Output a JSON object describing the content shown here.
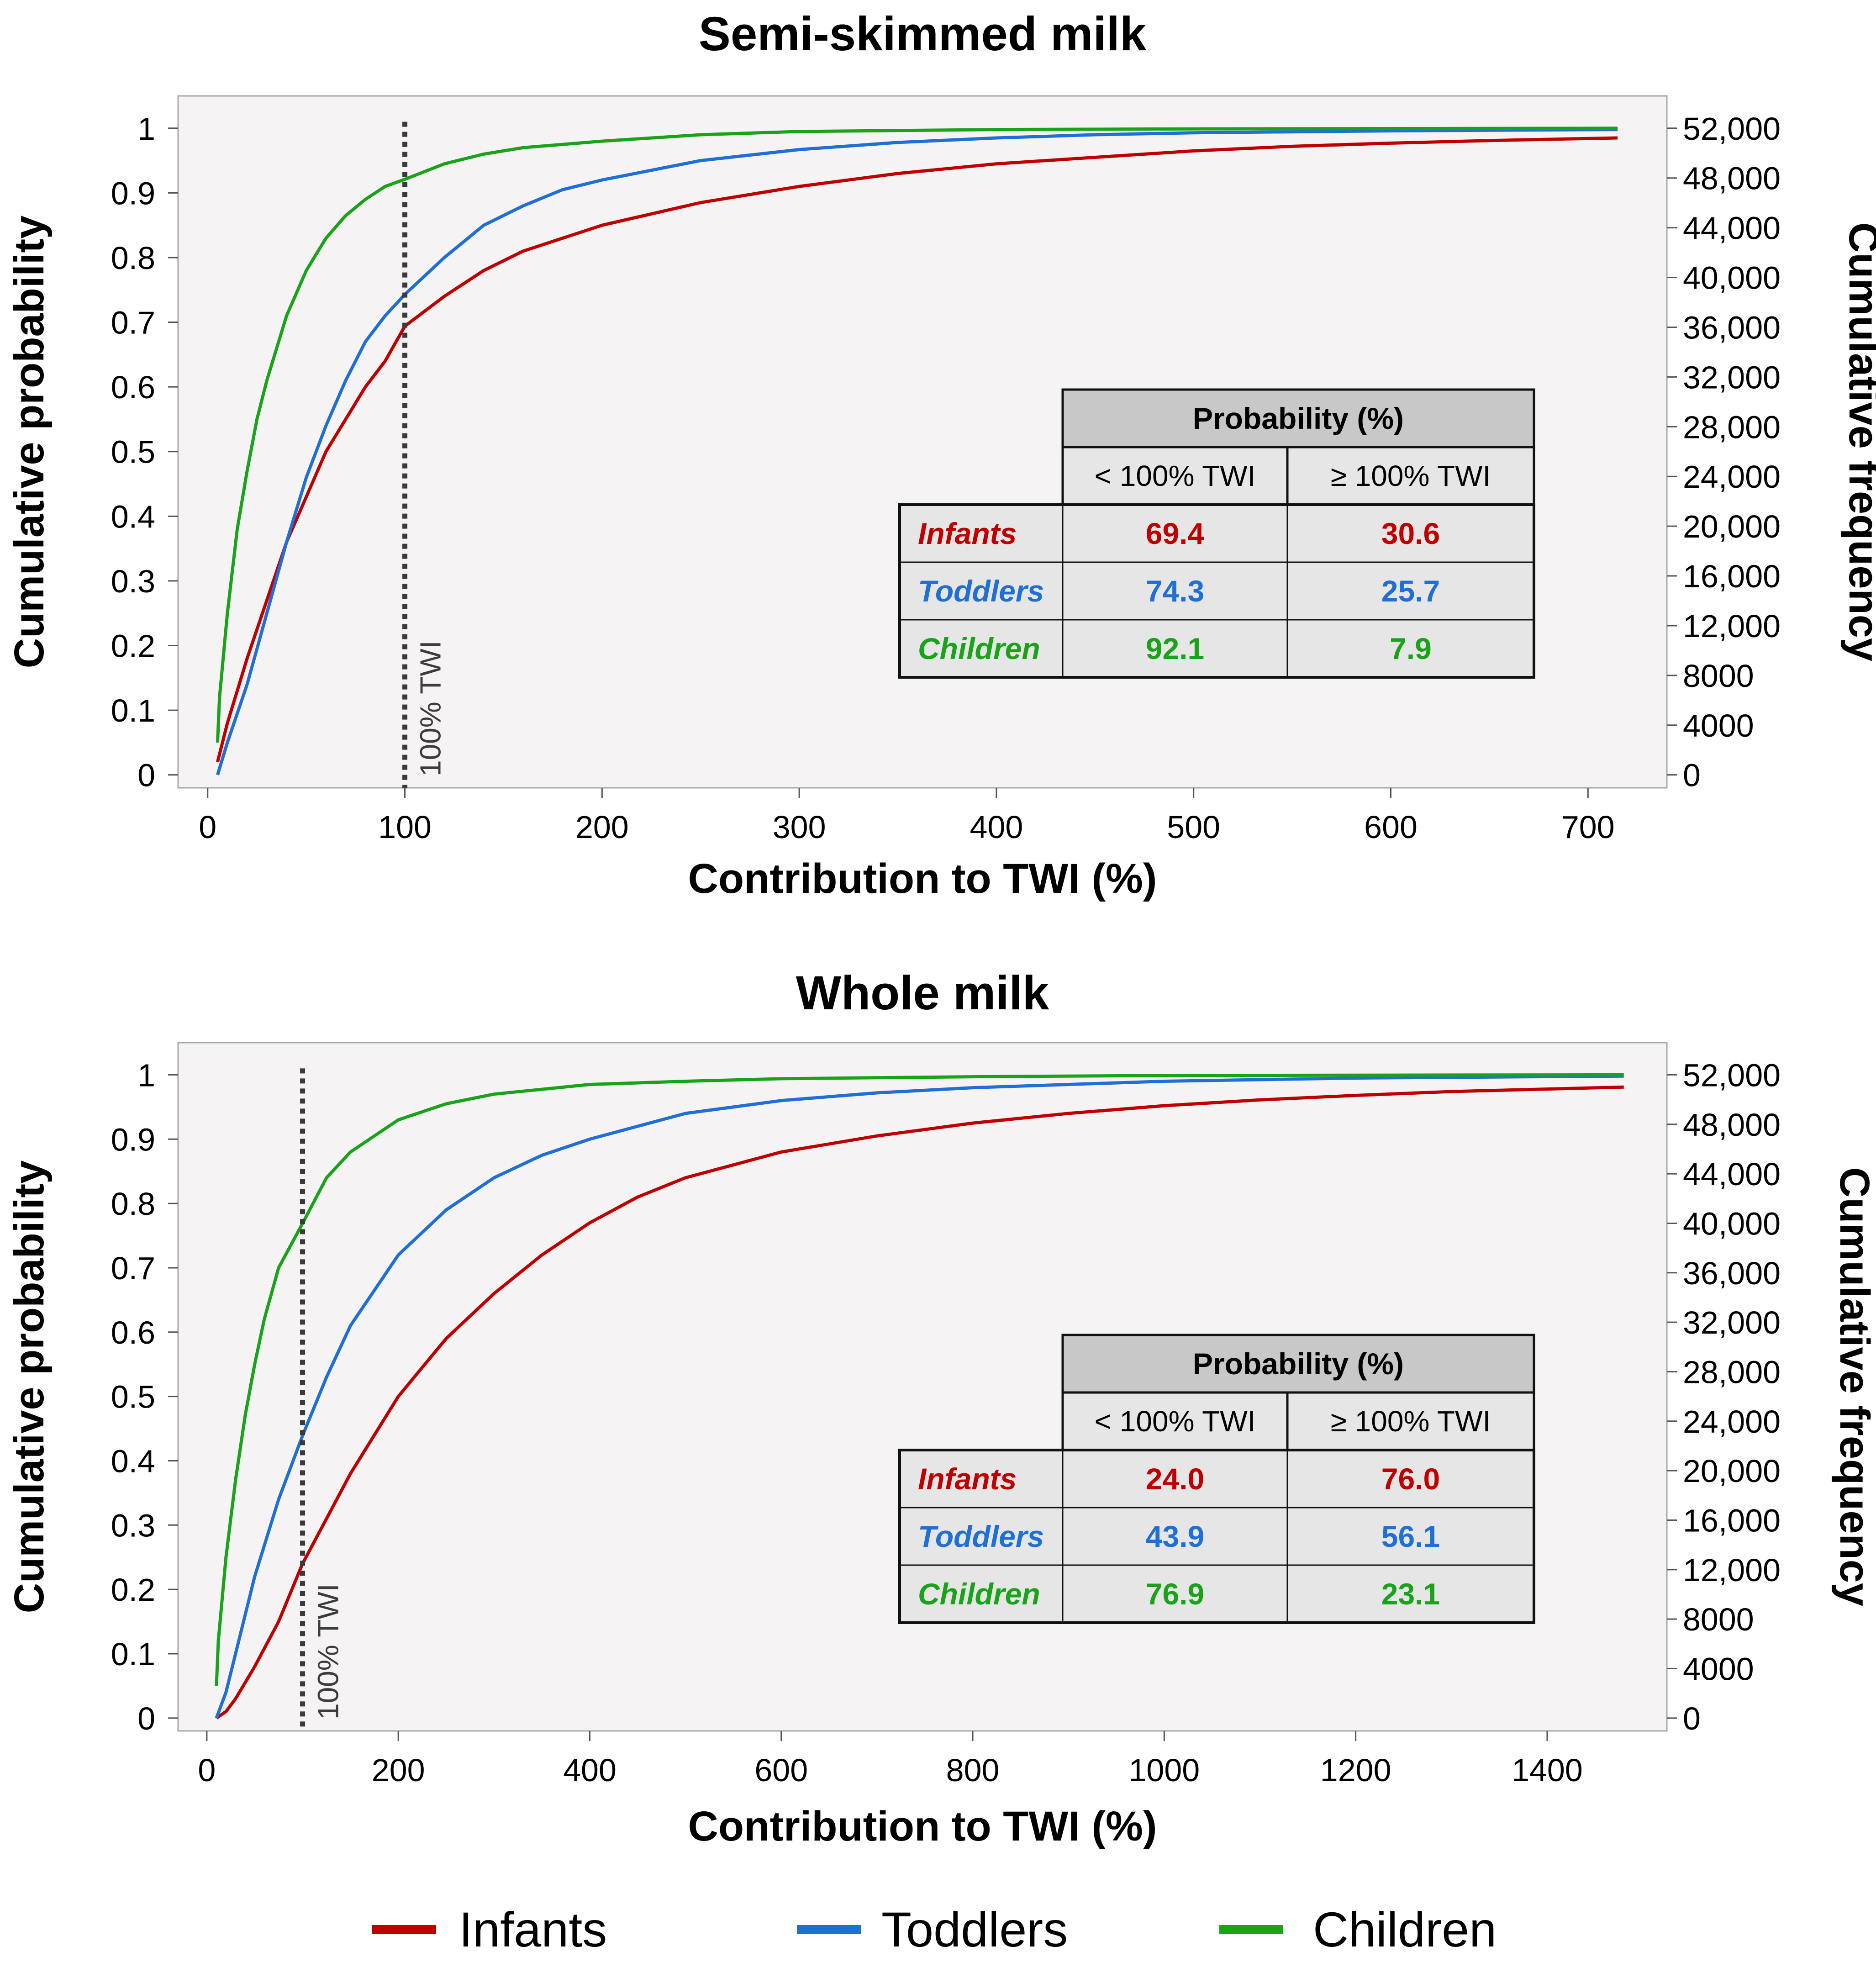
{
  "colors": {
    "infants": "#c00000",
    "toddlers": "#1f6fd6",
    "children": "#19a319",
    "plot_bg": "#f5f3f4",
    "table_header": "#c8c8c8",
    "table_body": "#e6e6e6",
    "twi_line": "#3a3a3a"
  },
  "legend": [
    {
      "key": "infants",
      "label": "Infants"
    },
    {
      "key": "toddlers",
      "label": "Toddlers"
    },
    {
      "key": "children",
      "label": "Children"
    }
  ],
  "chart_data": [
    {
      "type": "line",
      "title": "Semi-skimmed milk",
      "xlabel": "Contribution to TWI (%)",
      "ylabel": "Cumulative probability",
      "y2label": "Cumulative frequency",
      "xlim": [
        -15,
        740
      ],
      "ylim": [
        -0.02,
        1.05
      ],
      "y2lim": [
        -1040,
        54600
      ],
      "xticks": [
        0,
        100,
        200,
        300,
        400,
        500,
        600,
        700
      ],
      "xtick_labels": [
        "0",
        "100",
        "200",
        "300",
        "400",
        "500",
        "600",
        "700"
      ],
      "yticks": [
        0,
        0.1,
        0.2,
        0.3,
        0.4,
        0.5,
        0.6,
        0.7,
        0.8,
        0.9,
        1
      ],
      "ytick_labels": [
        "0",
        "0.1",
        "0.2",
        "0.3",
        "0.4",
        "0.5",
        "0.6",
        "0.7",
        "0.8",
        "0.9",
        "1"
      ],
      "y2ticks": [
        0,
        4000,
        8000,
        12000,
        16000,
        20000,
        24000,
        28000,
        32000,
        36000,
        40000,
        44000,
        48000,
        52000
      ],
      "y2tick_labels": [
        "0",
        "4000",
        "8000",
        "12,000",
        "16,000",
        "20,000",
        "24,000",
        "28,000",
        "32,000",
        "36,000",
        "40,000",
        "44,000",
        "48,000",
        "52,000"
      ],
      "twi_line": {
        "x": 100,
        "label": "100% TWI"
      },
      "series": [
        {
          "name": "Infants",
          "key": "infants",
          "x": [
            5,
            10,
            20,
            30,
            40,
            50,
            60,
            70,
            80,
            90,
            100,
            120,
            140,
            160,
            180,
            200,
            250,
            300,
            350,
            400,
            450,
            500,
            550,
            600,
            650,
            715
          ],
          "y": [
            0.02,
            0.08,
            0.18,
            0.27,
            0.36,
            0.43,
            0.5,
            0.55,
            0.6,
            0.64,
            0.694,
            0.74,
            0.78,
            0.81,
            0.83,
            0.85,
            0.885,
            0.91,
            0.93,
            0.945,
            0.955,
            0.965,
            0.972,
            0.977,
            0.981,
            0.985
          ]
        },
        {
          "name": "Toddlers",
          "key": "toddlers",
          "x": [
            5,
            10,
            20,
            30,
            40,
            50,
            60,
            70,
            80,
            90,
            100,
            120,
            140,
            160,
            180,
            200,
            250,
            300,
            350,
            400,
            450,
            500,
            600,
            715
          ],
          "y": [
            0,
            0.05,
            0.14,
            0.25,
            0.36,
            0.46,
            0.54,
            0.61,
            0.67,
            0.71,
            0.743,
            0.8,
            0.85,
            0.88,
            0.905,
            0.92,
            0.95,
            0.967,
            0.978,
            0.985,
            0.99,
            0.993,
            0.996,
            0.998
          ]
        },
        {
          "name": "Children",
          "key": "children",
          "x": [
            5,
            6,
            10,
            15,
            20,
            25,
            30,
            40,
            50,
            60,
            70,
            80,
            90,
            100,
            120,
            140,
            160,
            200,
            250,
            300,
            400,
            500,
            715
          ],
          "y": [
            0.05,
            0.12,
            0.25,
            0.38,
            0.47,
            0.55,
            0.61,
            0.71,
            0.78,
            0.83,
            0.865,
            0.89,
            0.91,
            0.921,
            0.945,
            0.96,
            0.97,
            0.98,
            0.99,
            0.995,
            0.998,
            0.999,
            1.0
          ]
        }
      ],
      "table": {
        "header": "Probability (%)",
        "col_labels": [
          "< 100% TWI",
          "≥ 100% TWI"
        ],
        "rows": [
          {
            "key": "infants",
            "name": "Infants",
            "below": "69.4",
            "above": "30.6"
          },
          {
            "key": "toddlers",
            "name": "Toddlers",
            "below": "74.3",
            "above": "25.7"
          },
          {
            "key": "children",
            "name": "Children",
            "below": "92.1",
            "above": "7.9"
          }
        ]
      }
    },
    {
      "type": "line",
      "title": "Whole milk",
      "xlabel": "Contribution to TWI (%)",
      "ylabel": "Cumulative probability",
      "y2label": "Cumulative frequency",
      "xlim": [
        -30,
        1525
      ],
      "ylim": [
        -0.02,
        1.05
      ],
      "y2lim": [
        -1040,
        54600
      ],
      "xticks": [
        0,
        200,
        400,
        600,
        800,
        1000,
        1200,
        1400
      ],
      "xtick_labels": [
        "0",
        "200",
        "400",
        "600",
        "800",
        "1000",
        "1200",
        "1400"
      ],
      "yticks": [
        0,
        0.1,
        0.2,
        0.3,
        0.4,
        0.5,
        0.6,
        0.7,
        0.8,
        0.9,
        1
      ],
      "ytick_labels": [
        "0",
        "0.1",
        "0.2",
        "0.3",
        "0.4",
        "0.5",
        "0.6",
        "0.7",
        "0.8",
        "0.9",
        "1"
      ],
      "y2ticks": [
        0,
        4000,
        8000,
        12000,
        16000,
        20000,
        24000,
        28000,
        32000,
        36000,
        40000,
        44000,
        48000,
        52000
      ],
      "y2tick_labels": [
        "0",
        "4000",
        "8000",
        "12,000",
        "16,000",
        "20,000",
        "24,000",
        "28,000",
        "32,000",
        "36,000",
        "40,000",
        "44,000",
        "48,000",
        "52,000"
      ],
      "twi_line": {
        "x": 100,
        "label": "100% TWI"
      },
      "series": [
        {
          "name": "Infants",
          "key": "infants",
          "x": [
            10,
            20,
            30,
            50,
            75,
            100,
            125,
            150,
            200,
            250,
            300,
            350,
            400,
            450,
            500,
            600,
            700,
            800,
            900,
            1000,
            1100,
            1200,
            1300,
            1480
          ],
          "y": [
            0,
            0.01,
            0.03,
            0.08,
            0.15,
            0.24,
            0.31,
            0.38,
            0.5,
            0.59,
            0.66,
            0.72,
            0.77,
            0.81,
            0.84,
            0.88,
            0.905,
            0.925,
            0.94,
            0.952,
            0.961,
            0.968,
            0.974,
            0.981
          ]
        },
        {
          "name": "Toddlers",
          "key": "toddlers",
          "x": [
            10,
            20,
            30,
            50,
            75,
            100,
            125,
            150,
            200,
            250,
            300,
            350,
            400,
            500,
            600,
            700,
            800,
            1000,
            1200,
            1480
          ],
          "y": [
            0,
            0.04,
            0.1,
            0.22,
            0.34,
            0.439,
            0.53,
            0.61,
            0.72,
            0.79,
            0.84,
            0.875,
            0.9,
            0.94,
            0.96,
            0.972,
            0.98,
            0.99,
            0.995,
            0.998
          ]
        },
        {
          "name": "Children",
          "key": "children",
          "x": [
            10,
            12,
            20,
            30,
            40,
            50,
            60,
            75,
            100,
            125,
            150,
            200,
            250,
            300,
            400,
            500,
            600,
            800,
            1000,
            1480
          ],
          "y": [
            0.05,
            0.12,
            0.25,
            0.37,
            0.47,
            0.55,
            0.62,
            0.7,
            0.769,
            0.84,
            0.88,
            0.93,
            0.955,
            0.97,
            0.985,
            0.99,
            0.994,
            0.997,
            0.999,
            1.0
          ]
        }
      ],
      "table": {
        "header": "Probability (%)",
        "col_labels": [
          "< 100% TWI",
          "≥ 100% TWI"
        ],
        "rows": [
          {
            "key": "infants",
            "name": "Infants",
            "below": "24.0",
            "above": "76.0"
          },
          {
            "key": "toddlers",
            "name": "Toddlers",
            "below": "43.9",
            "above": "56.1"
          },
          {
            "key": "children",
            "name": "Children",
            "below": "76.9",
            "above": "23.1"
          }
        ]
      }
    }
  ]
}
